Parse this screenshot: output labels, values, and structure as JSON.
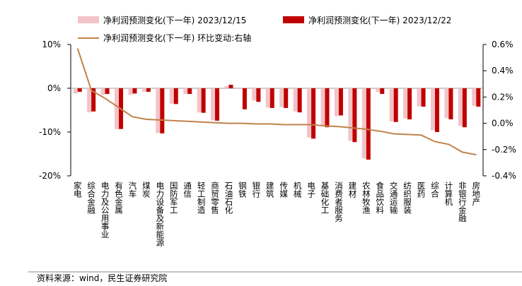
{
  "chart_data": {
    "type": "bar_line",
    "categories": [
      "家电",
      "综合金融",
      "电力及公用事业",
      "有色金属",
      "汽车",
      "煤炭",
      "电力设备及新能源",
      "国防军工",
      "通信",
      "轻工制造",
      "商贸零售",
      "石油石化",
      "钢铁",
      "银行",
      "建筑",
      "传媒",
      "机械",
      "电子",
      "基础化工",
      "消费者服务",
      "建材",
      "农林牧渔",
      "食品饮料",
      "交通运输",
      "纺织服装",
      "医药",
      "综合",
      "计算机",
      "非银行金融",
      "房地产"
    ],
    "series": [
      {
        "name": "净利润预测变化(下一年) 2023/12/15",
        "color": "#f2c4c8",
        "values": [
          -1.2,
          -5.5,
          -1.5,
          -9.3,
          -1.5,
          -0.8,
          -10.2,
          -3.5,
          -1.3,
          -5.5,
          -7.3,
          0.5,
          -0.2,
          -2.8,
          -4.4,
          -4.3,
          -5.3,
          -11.2,
          -8.6,
          -6.4,
          -12,
          -16,
          -0.8,
          -7.6,
          -6.9,
          -4.1,
          -9.6,
          -6.8,
          -8.6,
          -4.0
        ]
      },
      {
        "name": "净利润预测变化(下一年) 2023/12/22",
        "color": "#c00000",
        "values": [
          -0.8,
          -5.3,
          -1.3,
          -9.3,
          -1.2,
          -0.8,
          -10.3,
          -3.6,
          -1.3,
          -5.6,
          -7.4,
          0.8,
          -4.8,
          -3.1,
          -4.5,
          -4.5,
          -5.5,
          -11.5,
          -8.9,
          -6.2,
          -12.3,
          -16.3,
          -1.3,
          -7.7,
          -7.1,
          -4.2,
          -10.0,
          -7.1,
          -8.9,
          -4.2
        ]
      },
      {
        "name": "净利润预测变化(下一年) 环比变动:右轴",
        "color": "#c0824a",
        "axis": "y2",
        "values": [
          0.57,
          0.25,
          0.19,
          0.12,
          0.05,
          0.03,
          0.025,
          0.02,
          0.015,
          0.01,
          0.005,
          0.0,
          0.0,
          -0.005,
          -0.005,
          -0.01,
          -0.01,
          -0.01,
          -0.02,
          -0.025,
          -0.035,
          -0.045,
          -0.06,
          -0.08,
          -0.085,
          -0.09,
          -0.14,
          -0.16,
          -0.22,
          -0.24
        ]
      }
    ],
    "ylim": [
      -20,
      10
    ],
    "yticks": [
      {
        "value": 10,
        "label": "10%"
      },
      {
        "value": 0,
        "label": "0%"
      },
      {
        "value": -10,
        "label": "-10%"
      },
      {
        "value": -20,
        "label": "-20%"
      }
    ],
    "y2lim": [
      -0.4,
      0.6
    ],
    "y2ticks": [
      {
        "value": 0.6,
        "label": "0.6%"
      },
      {
        "value": 0.4,
        "label": "0.4%"
      },
      {
        "value": 0.2,
        "label": "0.2%"
      },
      {
        "value": 0,
        "label": "0.0%"
      },
      {
        "value": -0.2,
        "label": "-0.2%"
      },
      {
        "value": -0.4,
        "label": "-0.4%"
      }
    ],
    "source": "资料来源：wind，民生证券研究院"
  }
}
